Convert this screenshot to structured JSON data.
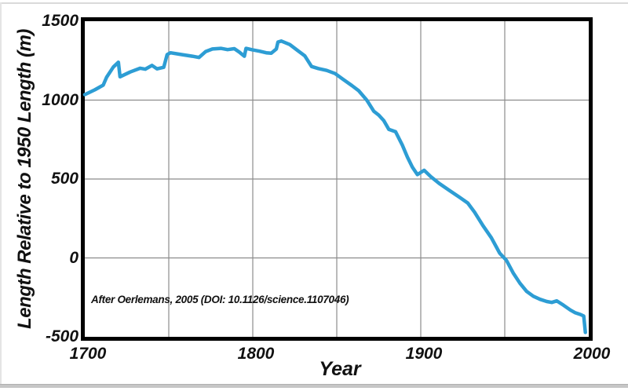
{
  "page": {
    "background": "#ffffff",
    "top_rule_color": "#dadada",
    "bottom_rule_color": "#c6c6c6"
  },
  "chart_data": {
    "type": "line",
    "title": "",
    "xlabel": "Year",
    "ylabel": "Length Relative to 1950 Length (m)",
    "annotation": "After Oerlemans, 2005 (DOI: 10.1126/science.1107046)",
    "xlim": [
      1700,
      2000
    ],
    "ylim": [
      -500,
      1500
    ],
    "x_ticks": [
      1700,
      1800,
      1900,
      2000
    ],
    "y_ticks": [
      1500,
      1000,
      500,
      0,
      -500
    ],
    "x_gridlines": [
      1750,
      1800,
      1850,
      1900,
      1950
    ],
    "y_gridlines": [
      1000,
      500,
      0
    ],
    "grid": true,
    "legend": "none",
    "line_color": "#2D9DD4",
    "grid_color": "#8c8c8c",
    "axis_color": "#000000",
    "series": [
      {
        "points": [
          [
            1700,
            1035
          ],
          [
            1706,
            1065
          ],
          [
            1711,
            1095
          ],
          [
            1713,
            1145
          ],
          [
            1717,
            1210
          ],
          [
            1720,
            1240
          ],
          [
            1721,
            1148
          ],
          [
            1727,
            1178
          ],
          [
            1733,
            1202
          ],
          [
            1736,
            1196
          ],
          [
            1740,
            1220
          ],
          [
            1743,
            1198
          ],
          [
            1747,
            1208
          ],
          [
            1749,
            1288
          ],
          [
            1751,
            1300
          ],
          [
            1758,
            1288
          ],
          [
            1764,
            1278
          ],
          [
            1768,
            1270
          ],
          [
            1772,
            1308
          ],
          [
            1776,
            1324
          ],
          [
            1781,
            1328
          ],
          [
            1785,
            1320
          ],
          [
            1789,
            1326
          ],
          [
            1792,
            1304
          ],
          [
            1795,
            1278
          ],
          [
            1796,
            1328
          ],
          [
            1800,
            1318
          ],
          [
            1804,
            1310
          ],
          [
            1808,
            1300
          ],
          [
            1811,
            1297
          ],
          [
            1814,
            1324
          ],
          [
            1815,
            1368
          ],
          [
            1817,
            1374
          ],
          [
            1822,
            1352
          ],
          [
            1827,
            1312
          ],
          [
            1831,
            1280
          ],
          [
            1835,
            1213
          ],
          [
            1839,
            1200
          ],
          [
            1844,
            1188
          ],
          [
            1849,
            1168
          ],
          [
            1854,
            1130
          ],
          [
            1859,
            1092
          ],
          [
            1863,
            1060
          ],
          [
            1868,
            998
          ],
          [
            1872,
            930
          ],
          [
            1875,
            905
          ],
          [
            1878,
            870
          ],
          [
            1881,
            815
          ],
          [
            1885,
            800
          ],
          [
            1889,
            715
          ],
          [
            1892,
            640
          ],
          [
            1895,
            575
          ],
          [
            1898,
            528
          ],
          [
            1902,
            555
          ],
          [
            1906,
            515
          ],
          [
            1911,
            472
          ],
          [
            1917,
            428
          ],
          [
            1923,
            385
          ],
          [
            1928,
            348
          ],
          [
            1932,
            290
          ],
          [
            1937,
            205
          ],
          [
            1942,
            128
          ],
          [
            1947,
            30
          ],
          [
            1951,
            -15
          ],
          [
            1955,
            -95
          ],
          [
            1959,
            -160
          ],
          [
            1963,
            -212
          ],
          [
            1967,
            -243
          ],
          [
            1971,
            -262
          ],
          [
            1975,
            -276
          ],
          [
            1978,
            -282
          ],
          [
            1981,
            -272
          ],
          [
            1985,
            -300
          ],
          [
            1989,
            -330
          ],
          [
            1992,
            -348
          ],
          [
            1995,
            -358
          ],
          [
            1997,
            -368
          ],
          [
            1998,
            -472
          ]
        ]
      }
    ]
  }
}
